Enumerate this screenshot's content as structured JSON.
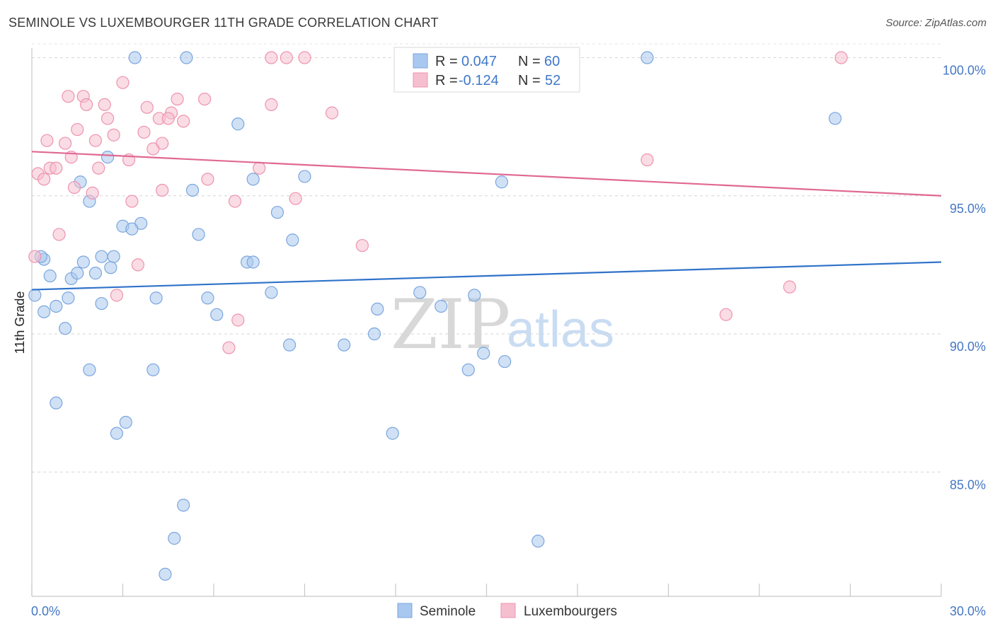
{
  "title": "SEMINOLE VS LUXEMBOURGER 11TH GRADE CORRELATION CHART",
  "source": "Source: ZipAtlas.com",
  "watermark": {
    "zip": "ZIP",
    "atlas": "atlas"
  },
  "legend_top": {
    "rows": [
      {
        "r_label": "R =",
        "r_value": "0.047",
        "n_label": "N =",
        "n_value": "60"
      },
      {
        "r_label": "R =",
        "r_value": "-0.124",
        "n_label": "N =",
        "n_value": "52"
      }
    ]
  },
  "colors": {
    "seminole_fill": "#a9c8ef",
    "seminole_stroke": "#7aa6dd",
    "seminole_line": "#2f72c9",
    "lux_fill": "#f6bfd0",
    "lux_stroke": "#ee93b0",
    "lux_line": "#e06893",
    "tick_label": "#4477c4"
  },
  "chart_data": {
    "type": "scatter",
    "title": "SEMINOLE VS LUXEMBOURGER 11TH GRADE CORRELATION CHART",
    "xlabel": "",
    "ylabel": "11th Grade",
    "xlim": [
      0,
      30
    ],
    "ylim": [
      80.5,
      100.5
    ],
    "x_tick_labels": [
      "0.0%",
      "30.0%"
    ],
    "y_ticks": [
      85,
      90,
      95,
      100
    ],
    "y_tick_labels": [
      "85.0%",
      "90.0%",
      "95.0%",
      "100.0%"
    ],
    "grid": true,
    "legend_position": "bottom-center",
    "series": [
      {
        "name": "Seminole",
        "r": 0.047,
        "n": 60,
        "trend": {
          "x": [
            0,
            30
          ],
          "y": [
            91.6,
            92.6
          ]
        },
        "points": [
          [
            3.4,
            100
          ],
          [
            5.1,
            100
          ],
          [
            20.3,
            100
          ],
          [
            26.5,
            97.8
          ],
          [
            6.8,
            97.6
          ],
          [
            2.5,
            96.4
          ],
          [
            7.3,
            95.6
          ],
          [
            9.0,
            95.7
          ],
          [
            15.5,
            95.5
          ],
          [
            1.6,
            95.5
          ],
          [
            5.3,
            95.2
          ],
          [
            1.9,
            94.8
          ],
          [
            8.1,
            94.4
          ],
          [
            3.6,
            94.0
          ],
          [
            3.0,
            93.9
          ],
          [
            3.3,
            93.8
          ],
          [
            5.5,
            93.6
          ],
          [
            8.6,
            93.4
          ],
          [
            0.4,
            92.7
          ],
          [
            1.7,
            92.6
          ],
          [
            2.3,
            92.8
          ],
          [
            2.7,
            92.8
          ],
          [
            7.1,
            92.6
          ],
          [
            7.3,
            92.6
          ],
          [
            0.6,
            92.1
          ],
          [
            1.3,
            92.0
          ],
          [
            1.5,
            92.2
          ],
          [
            2.1,
            92.2
          ],
          [
            2.6,
            92.4
          ],
          [
            0.1,
            91.4
          ],
          [
            1.2,
            91.3
          ],
          [
            4.1,
            91.3
          ],
          [
            5.8,
            91.3
          ],
          [
            7.9,
            91.5
          ],
          [
            12.8,
            91.5
          ],
          [
            14.6,
            91.4
          ],
          [
            0.4,
            90.8
          ],
          [
            0.8,
            91.0
          ],
          [
            2.3,
            91.1
          ],
          [
            6.1,
            90.7
          ],
          [
            11.4,
            90.9
          ],
          [
            13.5,
            91.0
          ],
          [
            1.1,
            90.2
          ],
          [
            11.3,
            90.0
          ],
          [
            8.5,
            89.6
          ],
          [
            10.3,
            89.6
          ],
          [
            14.9,
            89.3
          ],
          [
            15.6,
            89.0
          ],
          [
            14.4,
            88.7
          ],
          [
            1.9,
            88.7
          ],
          [
            4.0,
            88.7
          ],
          [
            0.8,
            87.5
          ],
          [
            3.1,
            86.8
          ],
          [
            2.8,
            86.4
          ],
          [
            11.9,
            86.4
          ],
          [
            5.0,
            83.8
          ],
          [
            4.7,
            82.6
          ],
          [
            16.7,
            82.5
          ],
          [
            4.4,
            81.3
          ],
          [
            0.3,
            92.8
          ]
        ]
      },
      {
        "name": "Luxembourgers",
        "r": -0.124,
        "n": 52,
        "trend": {
          "x": [
            0,
            30
          ],
          "y": [
            96.6,
            95.0
          ]
        },
        "points": [
          [
            7.9,
            100
          ],
          [
            8.4,
            100
          ],
          [
            9.0,
            100
          ],
          [
            26.7,
            100
          ],
          [
            3.0,
            99.1
          ],
          [
            1.2,
            98.6
          ],
          [
            1.7,
            98.6
          ],
          [
            4.8,
            98.5
          ],
          [
            5.7,
            98.5
          ],
          [
            1.8,
            98.3
          ],
          [
            2.4,
            98.3
          ],
          [
            3.8,
            98.2
          ],
          [
            7.9,
            98.3
          ],
          [
            9.9,
            98.0
          ],
          [
            4.6,
            98.0
          ],
          [
            2.5,
            97.8
          ],
          [
            4.2,
            97.8
          ],
          [
            4.5,
            97.8
          ],
          [
            5.0,
            97.7
          ],
          [
            1.5,
            97.4
          ],
          [
            2.7,
            97.2
          ],
          [
            3.7,
            97.3
          ],
          [
            0.5,
            97.0
          ],
          [
            1.1,
            96.9
          ],
          [
            2.1,
            97.0
          ],
          [
            4.3,
            96.9
          ],
          [
            4.0,
            96.7
          ],
          [
            1.3,
            96.4
          ],
          [
            3.2,
            96.3
          ],
          [
            20.3,
            96.3
          ],
          [
            0.6,
            96.0
          ],
          [
            0.8,
            96.0
          ],
          [
            2.2,
            96.0
          ],
          [
            7.5,
            96.0
          ],
          [
            0.2,
            95.8
          ],
          [
            0.4,
            95.6
          ],
          [
            5.8,
            95.6
          ],
          [
            1.4,
            95.3
          ],
          [
            4.3,
            95.2
          ],
          [
            2.0,
            95.1
          ],
          [
            8.7,
            94.9
          ],
          [
            3.3,
            94.8
          ],
          [
            6.7,
            94.8
          ],
          [
            0.9,
            93.6
          ],
          [
            10.9,
            93.2
          ],
          [
            3.5,
            92.5
          ],
          [
            0.1,
            92.8
          ],
          [
            2.8,
            91.4
          ],
          [
            25.0,
            91.7
          ],
          [
            22.9,
            90.7
          ],
          [
            6.8,
            90.5
          ],
          [
            6.5,
            89.5
          ]
        ]
      }
    ]
  }
}
